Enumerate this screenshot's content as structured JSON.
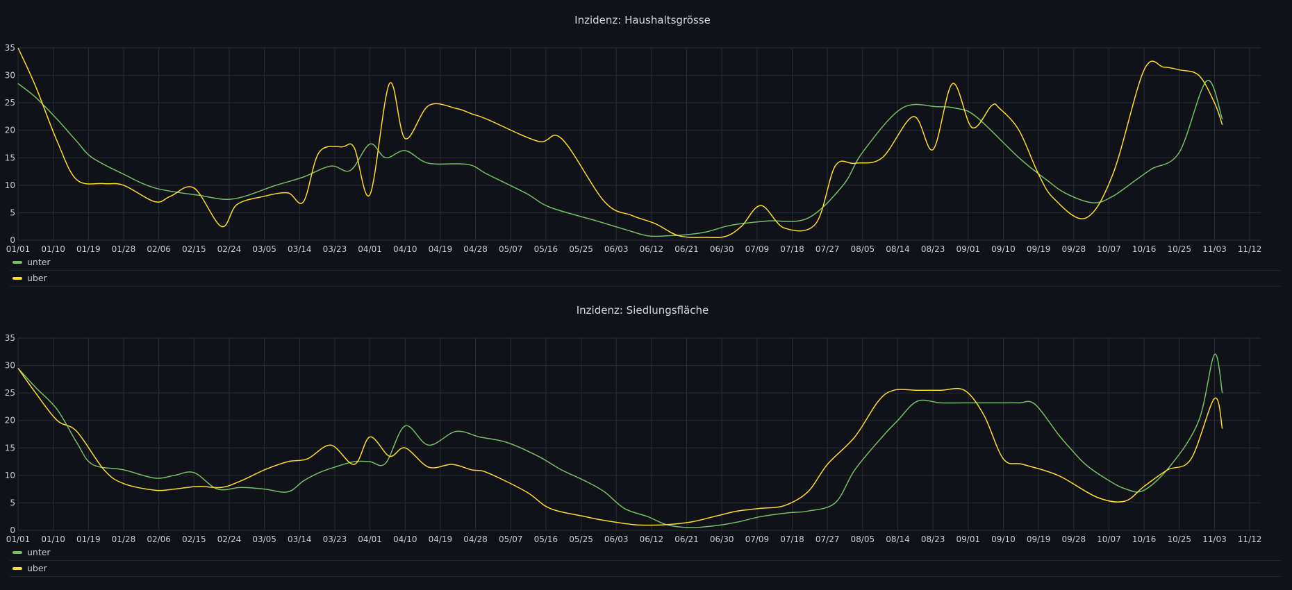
{
  "chart_data": [
    {
      "type": "line",
      "title": "Inzidenz: Haushaltsgrösse",
      "y_ticks": [
        "0",
        "5",
        "10",
        "15",
        "20",
        "25",
        "30",
        "35"
      ],
      "ylim": [
        0,
        35
      ],
      "x_ticks": [
        "01/01",
        "01/10",
        "01/19",
        "01/28",
        "02/06",
        "02/15",
        "02/24",
        "03/05",
        "03/14",
        "03/23",
        "04/01",
        "04/10",
        "04/19",
        "04/28",
        "05/07",
        "05/16",
        "05/25",
        "06/03",
        "06/12",
        "06/21",
        "06/30",
        "07/09",
        "07/18",
        "07/27",
        "08/05",
        "08/14",
        "08/23",
        "09/01",
        "09/10",
        "09/19",
        "09/28",
        "10/07",
        "10/16",
        "10/25",
        "11/03",
        "11/12"
      ],
      "legend_position": "bottom-left",
      "grid": true,
      "series": [
        {
          "name": "unter",
          "color": "#73bf69",
          "x": [
            0,
            4.5,
            10,
            15,
            19,
            27,
            35,
            46,
            55,
            66,
            73,
            80,
            85,
            90,
            94,
            99,
            105,
            115,
            120,
            130,
            136,
            148,
            155,
            161,
            166,
            171,
            176,
            181,
            185,
            192,
            202,
            211,
            216,
            226,
            235,
            240,
            245,
            256,
            263,
            268,
            275,
            280,
            286,
            290,
            297,
            304,
            308
          ],
          "y": [
            28.5,
            26,
            22,
            18,
            15,
            12,
            9.5,
            8.2,
            7.5,
            10,
            11.5,
            13.5,
            12.7,
            17.5,
            15,
            16.3,
            14,
            13.8,
            12,
            8.5,
            6,
            3.5,
            2,
            0.8,
            0.8,
            1,
            1.5,
            2.5,
            3,
            3.5,
            4,
            10,
            16,
            24,
            24.3,
            24,
            22.5,
            15,
            11,
            8.5,
            6.8,
            8,
            11,
            13,
            16,
            29,
            22
          ]
        },
        {
          "name": "uber",
          "color": "#fade2a",
          "x": [
            0,
            4.5,
            10,
            15,
            22,
            27,
            35,
            39,
            45,
            52,
            56,
            63,
            69,
            73,
            77,
            83,
            86,
            90,
            95,
            99,
            105,
            112,
            116,
            120,
            133,
            139,
            150,
            157,
            163,
            169,
            176,
            181,
            185,
            190,
            196,
            204,
            209,
            214,
            221,
            229,
            234,
            239,
            244,
            249,
            251,
            256,
            261,
            265,
            273,
            280,
            288,
            293,
            297,
            302,
            306,
            308
          ],
          "y": [
            35,
            28,
            18,
            11,
            10.3,
            10,
            7,
            8,
            9.5,
            2.5,
            6.5,
            8,
            8.6,
            7,
            16,
            17,
            16.8,
            8.3,
            28.5,
            18.5,
            24.5,
            24,
            23,
            22,
            18,
            18.5,
            7,
            4.5,
            3,
            0.8,
            0.5,
            0.7,
            2.5,
            6.3,
            2.2,
            3,
            13.5,
            14,
            15,
            22.5,
            16.5,
            28.5,
            20.5,
            24.5,
            24,
            20,
            12,
            7.5,
            4,
            12,
            31,
            31.5,
            31,
            30,
            25,
            21
          ]
        }
      ]
    },
    {
      "type": "line",
      "title": "Inzidenz: Siedlungsfläche",
      "y_ticks": [
        "0",
        "5",
        "10",
        "15",
        "20",
        "25",
        "30",
        "35"
      ],
      "ylim": [
        0,
        35
      ],
      "x_ticks": [
        "01/01",
        "01/10",
        "01/19",
        "01/28",
        "02/06",
        "02/15",
        "02/24",
        "03/05",
        "03/14",
        "03/23",
        "04/01",
        "04/10",
        "04/19",
        "04/28",
        "05/07",
        "05/16",
        "05/25",
        "06/03",
        "06/12",
        "06/21",
        "06/30",
        "07/09",
        "07/18",
        "07/27",
        "08/05",
        "08/14",
        "08/23",
        "09/01",
        "09/10",
        "09/19",
        "09/28",
        "10/07",
        "10/16",
        "10/25",
        "11/03",
        "11/12"
      ],
      "legend_position": "bottom-left",
      "grid": true,
      "series": [
        {
          "name": "unter",
          "color": "#73bf69",
          "x": [
            0,
            4.5,
            10,
            15,
            19,
            27,
            35,
            40,
            45,
            51,
            57,
            63,
            69,
            73,
            77,
            81,
            86,
            90,
            94,
            99,
            105,
            112,
            118,
            125,
            133,
            139,
            145,
            150,
            155,
            161,
            166,
            172,
            179,
            184,
            190,
            197,
            202,
            209,
            214,
            221,
            225,
            230,
            236,
            242,
            251,
            256,
            260,
            266,
            269,
            273,
            278,
            283,
            288,
            295,
            302,
            306,
            308
          ],
          "y": [
            29.5,
            26,
            22,
            16,
            12,
            11,
            9.5,
            10,
            10.5,
            7.5,
            7.8,
            7.5,
            7,
            9,
            10.5,
            11.5,
            12.5,
            12.5,
            12.2,
            19,
            15.5,
            18,
            17,
            16,
            13.5,
            11,
            9,
            7,
            4,
            2.5,
            1,
            0.5,
            0.9,
            1.5,
            2.5,
            3.2,
            3.5,
            5,
            11,
            17,
            20,
            23.5,
            23.2,
            23.2,
            23.2,
            23.2,
            23,
            17.5,
            15,
            12,
            9.5,
            7.6,
            7.3,
            12,
            20,
            32,
            25
          ]
        },
        {
          "name": "uber",
          "color": "#fade2a",
          "x": [
            0,
            4.5,
            10,
            15,
            22,
            27,
            35,
            40,
            46,
            52,
            57,
            63,
            69,
            74,
            80,
            86,
            90,
            95,
            99,
            105,
            111,
            116,
            120,
            130,
            136,
            145,
            150,
            158,
            165,
            172,
            178,
            184,
            190,
            196,
            202,
            207,
            214,
            220,
            224,
            230,
            236,
            242,
            247,
            252,
            257,
            266,
            276,
            283,
            288,
            294,
            300,
            306,
            308
          ],
          "y": [
            29.5,
            25,
            20,
            18,
            11,
            8.5,
            7.3,
            7.5,
            8,
            7.8,
            9,
            11,
            12.5,
            13,
            15.5,
            12,
            17,
            13.5,
            15,
            11.5,
            12,
            11,
            10.5,
            7,
            4,
            2.5,
            1.8,
            1,
            1,
            1.5,
            2.5,
            3.5,
            4,
            4.5,
            7,
            12,
            17,
            23.5,
            25.5,
            25.5,
            25.5,
            25.5,
            21,
            13,
            12,
            10,
            6,
            5.3,
            8,
            11,
            13,
            24,
            18.5
          ]
        }
      ]
    }
  ]
}
